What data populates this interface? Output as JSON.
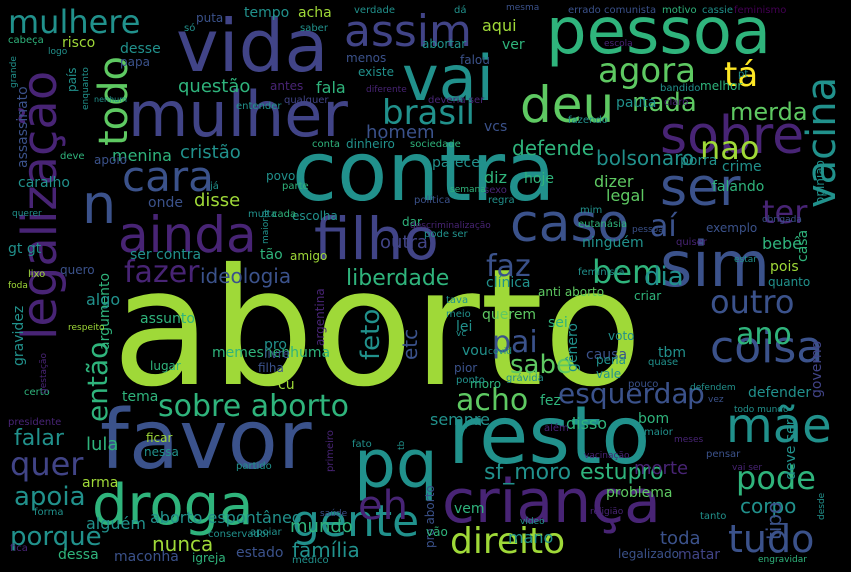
{
  "colors": {
    "background": "#000000",
    "yellow_green": "#9fd938",
    "green": "#5ec962",
    "teal_green": "#2fb47c",
    "teal": "#21918c",
    "steel_blue": "#3b528b",
    "indigo": "#414487",
    "purple": "#482475",
    "deep_purple": "#440154",
    "yellow": "#fde725"
  },
  "words": {
    "aborto": "aborto",
    "favor": "favor",
    "contra": "contra",
    "resto": "resto",
    "vida": "vida",
    "pessoa": "pessoa",
    "mulher": "mulher",
    "vai": "vai",
    "crianca": "criança",
    "droga": "droga",
    "pq": "pq",
    "legalizacao": "legalização",
    "filho": "filho",
    "sim": "sim",
    "caso": "caso",
    "ainda": "ainda",
    "ser": "ser",
    "sobre": "sobre",
    "deu": "deu",
    "assim": "assim",
    "mulhere": "mulhere",
    "mae": "mãe",
    "gente": "gente",
    "coisa": "coisa",
    "tudo": "tudo",
    "direito": "direito",
    "cara": "cara",
    "todo": "todo",
    "vacina": "vacina",
    "agora": "agora",
    "ta": "tá",
    "brasil": "brasil",
    "nao": "nao",
    "n": "n",
    "sobre_aborto": "sobre aborto",
    "acho": "acho",
    "pode": "pode",
    "outro": "outro",
    "ano": "ano",
    "quer": "quer",
    "fazer": "fazer",
    "bem": "bem",
    "dia": "dia",
    "pai": "pai",
    "sabe": "sabe",
    "esquerda": "esquerda",
    "p": "p",
    "ter": "ter",
    "ai": "aí",
    "apoia": "apoia",
    "porque": "porque",
    "eh": "eh",
    "sf_moro": "sf_moro",
    "estupro": "estupro",
    "corpo": "corpo",
    "nunca": "nunca",
    "familia": "família",
    "mundo": "mundo",
    "aborto_espontaneo": "aborto espontâneo",
    "falar": "falar",
    "lula": "lula",
    "feto": "feto",
    "etc": "etc",
    "entao": "então",
    "ideologia": "ideologia",
    "liberdade": "liberdade",
    "faz": "faz",
    "merda": "merda",
    "nada": "nada",
    "questao": "questão",
    "fala": "fala",
    "homem": "homem",
    "cristao": "cristão",
    "defende": "defende",
    "bolsonaro": "bolsonaro",
    "dizer": "dizer",
    "menina": "menina",
    "caralho": "caralho",
    "onde": "onde",
    "disse": "disse",
    "ser_contra": "ser contra",
    "tao": "tão",
    "sempre": "sempre",
    "morte": "morte",
    "problema": "problema",
    "toda": "toda",
    "legalizado": "legalizado",
    "matar": "matar",
    "alguem": "alguém",
    "dessa": "dessa",
    "maconha": "maconha",
    "igreja": "igreja",
    "estado": "estado",
    "medico": "médico",
    "mano": "mano",
    "vem": "vem",
    "arma": "arma",
    "bebe": "bebê",
    "pois": "pois",
    "legal": "legal",
    "falando": "falando",
    "ninguem": "ninguém",
    "hoje": "hoje",
    "diz": "diz",
    "tipo": "tipo",
    "defender": "defender",
    "deve_ser": "deve ser",
    "governo": "governo",
    "tbm": "tbm",
    "causa": "causa",
    "voto": "voto",
    "quanto": "quanto",
    "bom": "bom",
    "disso": "disso",
    "fez": "fez",
    "genero": "gênero",
    "vou": "vou",
    "lei": "lei",
    "sei": "sei",
    "querem": "querem",
    "memesnenhuma": "memesnenhuma",
    "argumento": "argumento",
    "tema": "tema",
    "cu": "cu",
    "pro": "pro",
    "assunto": "assunto",
    "algo": "algo",
    "gravidez": "gravidez",
    "assassinato": "assassinato",
    "apoio": "apoio",
    "pauta": "pauta",
    "melhor": "melhor",
    "existe": "existe",
    "menos": "menos",
    "papa": "papa",
    "desse": "desse",
    "aqui": "aqui",
    "ver": "ver",
    "acha": "acha",
    "tempo": "tempo",
    "puta": "puta",
    "risco": "risco",
    "pais": "país",
    "abortar": "abortar",
    "falou": "falou",
    "outra": "outra",
    "argentina": "argentina",
    "criar": "criar",
    "anti_aborto": "anti aborto",
    "clinica": "clínica",
    "amigo": "amigo",
    "parece": "parece",
    "dar": "dar",
    "crime": "crime",
    "povo": "povo",
    "parte": "parte",
    "escolha": "escolha",
    "vcs": "vcs",
    "porra": "porra",
    "opiniao": "opinião",
    "exemplo": "exemplo",
    "casa": "casa",
    "vale": "vale",
    "pena": "pena",
    "moro": "moro",
    "pior": "pior",
    "filha": "filha",
    "livre": "livre",
    "lugar": "lugar",
    "gt_gt": "gt gt",
    "quero": "quero",
    "verdade": "verdade",
    "mesma": "mesma",
    "errado": "errado",
    "comunista": "comunista",
    "motivo": "motivo",
    "cassie": "cassie",
    "feminismo": "feminismo",
    "da": "dá",
    "saber": "saber",
    "cabeca": "cabeça",
    "so": "só",
    "antes": "antes",
    "qualquer": "qualquer",
    "entender": "entender",
    "bandido": "bandido",
    "claro": "claro",
    "pt": "pt",
    "escola": "escola",
    "deveria_ser": "deveria ser",
    "diferente": "diferente",
    "fazendo": "fazendo",
    "sociedade": "sociedade",
    "dinheiro": "dinheiro",
    "conta": "conta",
    "deve": "deve",
    "sexo": "sexo",
    "regra": "regra",
    "semana": "semana",
    "politica": "política",
    "feminista": "feminista",
    "eutanasia": "eutanásia",
    "mim": "mim",
    "pessoal": "pessoal",
    "quiser": "quiser",
    "obrigada": "obrigada",
    "pode_ser": "pode ser",
    "estar": "estar",
    "certo": "certo",
    "gestacao": "gestação",
    "presidente": "presidente",
    "conservador": "conservador",
    "partido": "partido",
    "ficar": "ficar",
    "nessa": "nessa",
    "saude": "saúde",
    "fato": "fato",
    "primeiro": "primeiro",
    "pro_aborto": "pro aborto",
    "grávida": "grávida",
    "ponto": "ponto",
    "alem": "além",
    "maior": "maior",
    "pouco": "pouco",
    "defendem": "defendem",
    "todo_mundo": "todo mundo",
    "vez": "vez",
    "pensar": "pensar",
    "meses": "meses",
    "vacinacao": "vacinação",
    "video": "vídeo",
    "religiao": "religião",
    "desde": "desde",
    "engravidar": "engravidar",
    "vai_ser": "vai ser",
    "tanto": "tanto",
    "forma": "forma",
    "fica": "fica",
    "lixo": "lixo",
    "foda": "foda",
    "querer": "querer",
    "grande": "grande",
    "logo": "logo",
    "enquanto": "enquanto",
    "nenhum": "nenhum",
    "maioria": "maioria",
    "tava": "tava",
    "respeito": "respeito",
    "meio": "meio",
    "ja": "já",
    "covid": "covid",
    "quase": "quase",
    "muita": "muita",
    "cada": "cada",
    "descriminalizacao": "descriminalização",
    "vc": "vc",
    "tb": "tb",
    "vao": "vão",
    "apoiar": "apoiar"
  }
}
